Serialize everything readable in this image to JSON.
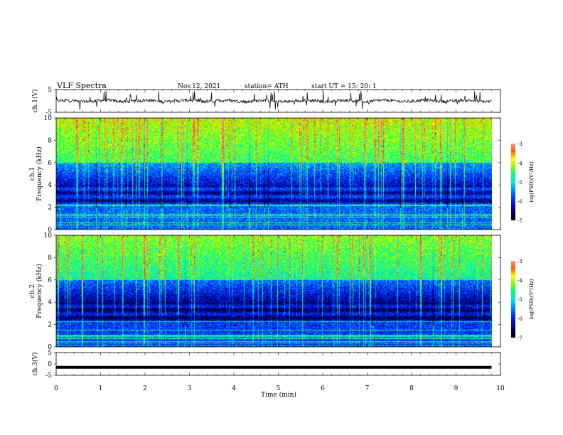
{
  "header": {
    "title": "VLF  Spectra",
    "date": "Nov.12, 2021",
    "station": "station= ATH",
    "start": "start  UT  =    15: 20: 1"
  },
  "colors": {
    "colormap": [
      "#000000",
      "#000080",
      "#0000ff",
      "#0080ff",
      "#00ffff",
      "#00ff80",
      "#80ff00",
      "#ffff00",
      "#ff8000",
      "#ff0000",
      "#ff8080",
      "#ffffff"
    ]
  },
  "chart_data": [
    {
      "type": "line",
      "name": "ch1",
      "ylabel": "ch.1(V)",
      "ylim": [
        -5,
        5
      ],
      "yticks": [
        "5",
        "-5"
      ],
      "xlim": [
        0,
        10
      ],
      "description_values": "noisy waveform around y = 0, amplitude about ±1 V with spikes up to ±5 V"
    },
    {
      "type": "heatmap",
      "name": "ch1-spectrogram",
      "ylabel": "ch.1\nFrequency (kHz)",
      "ylim": [
        0,
        10
      ],
      "yticks": [
        "0",
        "2",
        "4",
        "6",
        "8",
        "10"
      ],
      "xlim": [
        0,
        9.8
      ],
      "colorbar": {
        "label": "log(PSD)(V²/Hz)",
        "range": [
          -7,
          -3
        ],
        "ticks": [
          "-3",
          "-4",
          "-5",
          "-6",
          "-7"
        ]
      }
    },
    {
      "type": "heatmap",
      "name": "ch2-spectrogram",
      "ylabel": "ch.2\nFrequency (kHz)",
      "ylim": [
        0,
        10
      ],
      "yticks": [
        "0",
        "2",
        "4",
        "6",
        "8",
        "10"
      ],
      "xlim": [
        0,
        9.8
      ],
      "colorbar": {
        "label": "log(PSD)(V²/Hz)",
        "range": [
          -7,
          -3
        ],
        "ticks": [
          "-3",
          "-4",
          "-5",
          "-6",
          "-7"
        ]
      }
    },
    {
      "type": "line",
      "name": "ch3",
      "ylabel": "ch.3(V)",
      "ylim": [
        -5,
        5
      ],
      "yticks": [
        "5",
        "0",
        "-5"
      ],
      "xlim": [
        0,
        10
      ],
      "x": [
        0,
        9.8
      ],
      "y": [
        -1.5,
        -1.5
      ]
    }
  ],
  "xaxis": {
    "label": "Time  (min)",
    "ticks": [
      "0",
      "1",
      "2",
      "3",
      "4",
      "5",
      "6",
      "7",
      "8",
      "9",
      "10"
    ]
  }
}
